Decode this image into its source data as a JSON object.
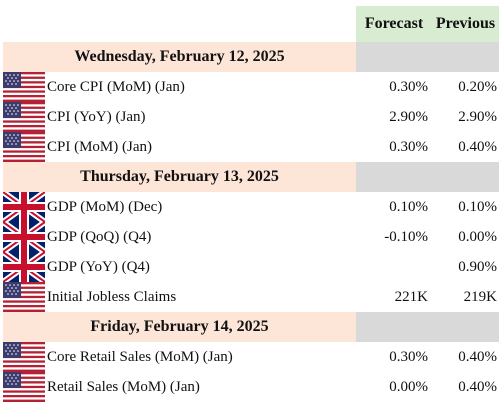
{
  "header": {
    "forecast_label": "Forecast",
    "previous_label": "Previous"
  },
  "days": [
    {
      "date": "Wednesday, February 12, 2025",
      "events": [
        {
          "flag": "us-flag-icon",
          "name": "Core CPI (MoM) (Jan)",
          "forecast": "0.30%",
          "previous": "0.20%"
        },
        {
          "flag": "us-flag-icon",
          "name": "CPI (YoY) (Jan)",
          "forecast": "2.90%",
          "previous": "2.90%"
        },
        {
          "flag": "us-flag-icon",
          "name": "CPI (MoM) (Jan)",
          "forecast": "0.30%",
          "previous": "0.40%"
        }
      ]
    },
    {
      "date": "Thursday, February 13, 2025",
      "events": [
        {
          "flag": "uk-flag-icon",
          "name": "GDP (MoM) (Dec)",
          "forecast": "0.10%",
          "previous": "0.10%"
        },
        {
          "flag": "uk-flag-icon",
          "name": "GDP (QoQ) (Q4)",
          "forecast": "-0.10%",
          "previous": "0.00%"
        },
        {
          "flag": "uk-flag-icon",
          "name": "GDP (YoY) (Q4)",
          "forecast": "",
          "previous": "0.90%"
        },
        {
          "flag": "us-flag-icon",
          "name": "Initial Jobless Claims",
          "forecast": "221K",
          "previous": "219K"
        }
      ]
    },
    {
      "date": "Friday, February 14, 2025",
      "events": [
        {
          "flag": "us-flag-icon",
          "name": "Core Retail Sales (MoM) (Jan)",
          "forecast": "0.30%",
          "previous": "0.40%"
        },
        {
          "flag": "us-flag-icon",
          "name": "Retail Sales (MoM) (Jan)",
          "forecast": "0.00%",
          "previous": "0.40%"
        }
      ]
    }
  ],
  "colors": {
    "header_green": "#d7ecd0",
    "date_peach": "#fde5d7",
    "date_gray": "#d9d9d9",
    "us_red": "#b22234",
    "us_blue": "#3c3b6e",
    "uk_blue": "#012169",
    "uk_red": "#c8102e"
  }
}
